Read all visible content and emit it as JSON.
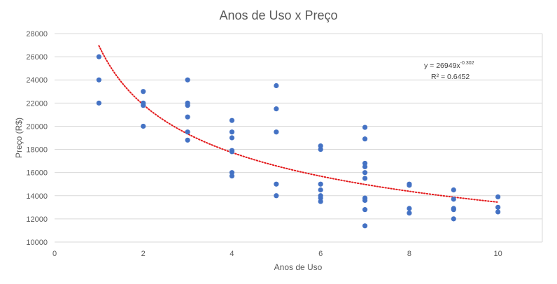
{
  "chart_data": {
    "type": "scatter",
    "title": "Anos de Uso x Preço",
    "xlabel": "Anos de Uso",
    "ylabel": "Preço (R$)",
    "xlim": [
      0,
      11
    ],
    "ylim": [
      10000,
      28000
    ],
    "x_ticks": [
      0,
      2,
      4,
      6,
      8,
      10
    ],
    "y_ticks": [
      10000,
      12000,
      14000,
      16000,
      18000,
      20000,
      22000,
      24000,
      26000,
      28000
    ],
    "grid": "horizontal",
    "legend": "none",
    "series": [
      {
        "color": "#4472c4",
        "points": [
          [
            1,
            26000
          ],
          [
            1,
            24000
          ],
          [
            1,
            22000
          ],
          [
            2,
            23000
          ],
          [
            2,
            22000
          ],
          [
            2,
            21800
          ],
          [
            2,
            20000
          ],
          [
            3,
            24000
          ],
          [
            3,
            22000
          ],
          [
            3,
            21800
          ],
          [
            3,
            20800
          ],
          [
            3,
            19500
          ],
          [
            3,
            18800
          ],
          [
            4,
            20500
          ],
          [
            4,
            19500
          ],
          [
            4,
            19000
          ],
          [
            4,
            17900
          ],
          [
            4,
            17800
          ],
          [
            4,
            16000
          ],
          [
            4,
            15700
          ],
          [
            5,
            23500
          ],
          [
            5,
            21500
          ],
          [
            5,
            19500
          ],
          [
            5,
            15000
          ],
          [
            5,
            14000
          ],
          [
            6,
            18300
          ],
          [
            6,
            18000
          ],
          [
            6,
            15000
          ],
          [
            6,
            14500
          ],
          [
            6,
            14000
          ],
          [
            6,
            13800
          ],
          [
            6,
            13500
          ],
          [
            7,
            19900
          ],
          [
            7,
            18900
          ],
          [
            7,
            16800
          ],
          [
            7,
            16500
          ],
          [
            7,
            16000
          ],
          [
            7,
            15500
          ],
          [
            7,
            13800
          ],
          [
            7,
            13600
          ],
          [
            7,
            12800
          ],
          [
            7,
            11400
          ],
          [
            8,
            15000
          ],
          [
            8,
            14900
          ],
          [
            8,
            12900
          ],
          [
            8,
            12500
          ],
          [
            9,
            14500
          ],
          [
            9,
            13700
          ],
          [
            9,
            12900
          ],
          [
            9,
            12800
          ],
          [
            9,
            12000
          ],
          [
            10,
            13900
          ],
          [
            10,
            13000
          ],
          [
            10,
            12600
          ]
        ]
      }
    ],
    "trendline": {
      "type": "power",
      "a": 26949,
      "b": -0.302,
      "x_range": [
        1,
        10
      ],
      "color": "#e31a1c",
      "equation_prefix": "y = 26949x",
      "equation_exponent": "-0.302",
      "r_squared_label": "R² = 0.6452"
    },
    "colors": {
      "marker": "#4472c4",
      "trend": "#e31a1c",
      "grid": "#d9d9d9",
      "axis_text": "#595959"
    }
  }
}
